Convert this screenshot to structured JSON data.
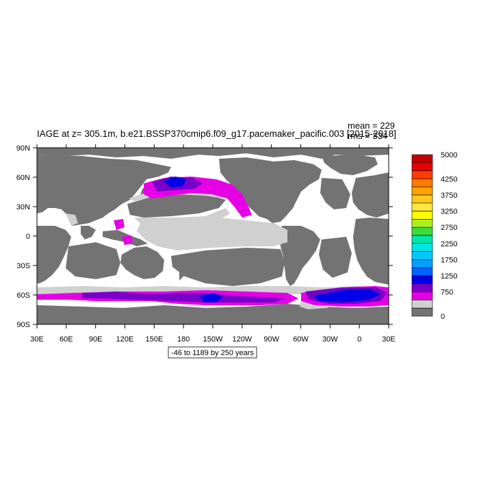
{
  "title": "IAGE at z= 305.1m, b.e21.BSSP370cmip6.f09_g17.pacemaker_pacific.003 [2015-2018]",
  "stats": {
    "mean": "mean = 229",
    "rms": "rms = 334"
  },
  "range_note": "-46 to 1189 by 250 years",
  "x_ticks": [
    "30E",
    "60E",
    "90E",
    "120E",
    "150E",
    "180",
    "150W",
    "120W",
    "90W",
    "60W",
    "30W",
    "0",
    "30E"
  ],
  "y_ticks": [
    "90N",
    "60N",
    "30N",
    "0",
    "30S",
    "60S",
    "90S"
  ],
  "colorbar": {
    "labels": [
      "5000",
      "4250",
      "3750",
      "3250",
      "2750",
      "2250",
      "1750",
      "1250",
      "750",
      "0"
    ],
    "colors": [
      "#c40000",
      "#e80000",
      "#ff3a00",
      "#ff7a00",
      "#ffa300",
      "#ffc81e",
      "#ffe640",
      "#ffff00",
      "#aaf01e",
      "#3cdc3c",
      "#00e6aa",
      "#00e6e6",
      "#00c8ff",
      "#00a0ff",
      "#0064ff",
      "#0000e6",
      "#7800c8",
      "#e600e6",
      "#d0d0d0",
      "#737373"
    ]
  },
  "legend_colors": {
    "land": "#737373",
    "ocean_low": "#d0d0d0",
    "magenta": "#e600e6",
    "purple": "#7800c8",
    "blue": "#0000e6",
    "missing": "#ffffff"
  }
}
